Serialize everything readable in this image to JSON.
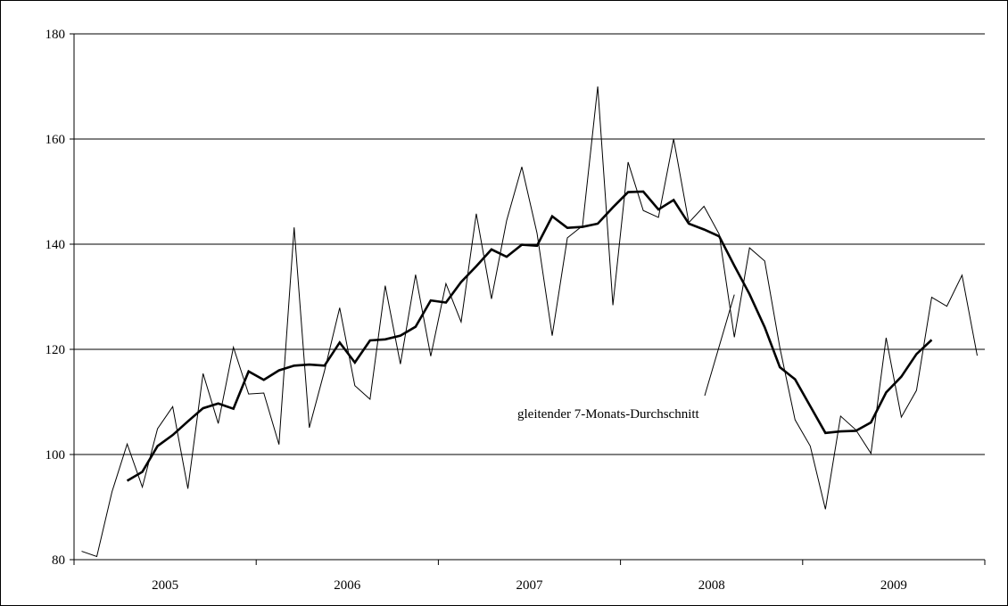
{
  "chart_data": {
    "type": "line",
    "ylim": [
      80,
      180
    ],
    "yticks": [
      80,
      100,
      120,
      140,
      160,
      180
    ],
    "ytick_labels": [
      "80",
      "100",
      "120",
      "140",
      "160",
      "180"
    ],
    "grid": true,
    "x_start": "2005-01",
    "x_end": "2009-12",
    "year_labels": [
      "2005",
      "2006",
      "2007",
      "2008",
      "2009"
    ],
    "annotation": "gleitender 7-Monats-Durchschnitt",
    "series": [
      {
        "key": "monthly",
        "color": "#000000",
        "x": [
          "2005-01",
          "2005-02",
          "2005-03",
          "2005-04",
          "2005-05",
          "2005-06",
          "2005-07",
          "2005-08",
          "2005-09",
          "2005-10",
          "2005-11",
          "2005-12",
          "2006-01",
          "2006-02",
          "2006-03",
          "2006-04",
          "2006-05",
          "2006-06",
          "2006-07",
          "2006-08",
          "2006-09",
          "2006-10",
          "2006-11",
          "2006-12",
          "2007-01",
          "2007-02",
          "2007-03",
          "2007-04",
          "2007-05",
          "2007-06",
          "2007-07",
          "2007-08",
          "2007-09",
          "2007-10",
          "2007-11",
          "2007-12",
          "2008-01",
          "2008-02",
          "2008-03",
          "2008-04",
          "2008-05",
          "2008-06",
          "2008-07",
          "2008-08",
          "2008-09",
          "2008-10",
          "2008-11",
          "2008-12",
          "2009-01",
          "2009-02",
          "2009-03",
          "2009-04",
          "2009-05",
          "2009-06",
          "2009-07",
          "2009-08",
          "2009-09",
          "2009-10",
          "2009-11",
          "2009-12"
        ],
        "values": [
          81.6,
          80.6,
          92.9,
          102.0,
          93.8,
          104.9,
          109.1,
          93.5,
          115.4,
          105.9,
          120.4,
          111.5,
          111.7,
          101.9,
          143.2,
          105.1,
          115.9,
          127.9,
          113.1,
          110.5,
          132.1,
          117.2,
          134.2,
          118.7,
          132.5,
          125.2,
          145.8,
          129.6,
          144.5,
          154.7,
          142.1,
          122.6,
          141.2,
          143.5,
          170.0,
          128.4,
          155.6,
          146.4,
          145.1,
          160.0,
          144.1,
          147.2,
          141.9,
          122.3,
          139.3,
          136.8,
          120.3,
          106.6,
          101.6,
          89.6,
          107.3,
          104.7,
          100.2,
          122.2,
          107.1,
          112.2,
          129.9,
          128.2,
          134.1,
          118.8
        ]
      },
      {
        "key": "moving_average",
        "color": "#000000",
        "x": [
          "2005-04",
          "2005-05",
          "2005-06",
          "2005-07",
          "2005-08",
          "2005-09",
          "2005-10",
          "2005-11",
          "2005-12",
          "2006-01",
          "2006-02",
          "2006-03",
          "2006-04",
          "2006-05",
          "2006-06",
          "2006-07",
          "2006-08",
          "2006-09",
          "2006-10",
          "2006-11",
          "2006-12",
          "2007-01",
          "2007-02",
          "2007-03",
          "2007-04",
          "2007-05",
          "2007-06",
          "2007-07",
          "2007-08",
          "2007-09",
          "2007-10",
          "2007-11",
          "2007-12",
          "2008-01",
          "2008-02",
          "2008-03",
          "2008-04",
          "2008-05",
          "2008-06",
          "2008-07",
          "2008-08",
          "2008-09",
          "2008-10",
          "2008-11",
          "2008-12",
          "2009-01",
          "2009-02",
          "2009-03",
          "2009-04",
          "2009-05",
          "2009-06",
          "2009-07",
          "2009-08",
          "2009-09"
        ],
        "values": [
          95.0,
          96.7,
          101.6,
          103.7,
          106.3,
          108.8,
          109.7,
          108.7,
          115.8,
          114.2,
          116.0,
          116.9,
          117.1,
          116.9,
          121.3,
          117.5,
          121.7,
          121.9,
          122.6,
          124.3,
          129.3,
          128.9,
          132.8,
          135.8,
          139.0,
          137.6,
          139.9,
          139.7,
          145.3,
          143.1,
          143.3,
          143.9,
          147.0,
          149.9,
          150.0,
          146.6,
          148.4,
          143.9,
          142.8,
          141.5,
          135.9,
          130.5,
          124.2,
          116.6,
          114.3,
          109.2,
          104.1,
          104.4,
          104.5,
          106.1,
          111.8,
          114.8,
          119.1,
          121.8
        ]
      }
    ]
  }
}
